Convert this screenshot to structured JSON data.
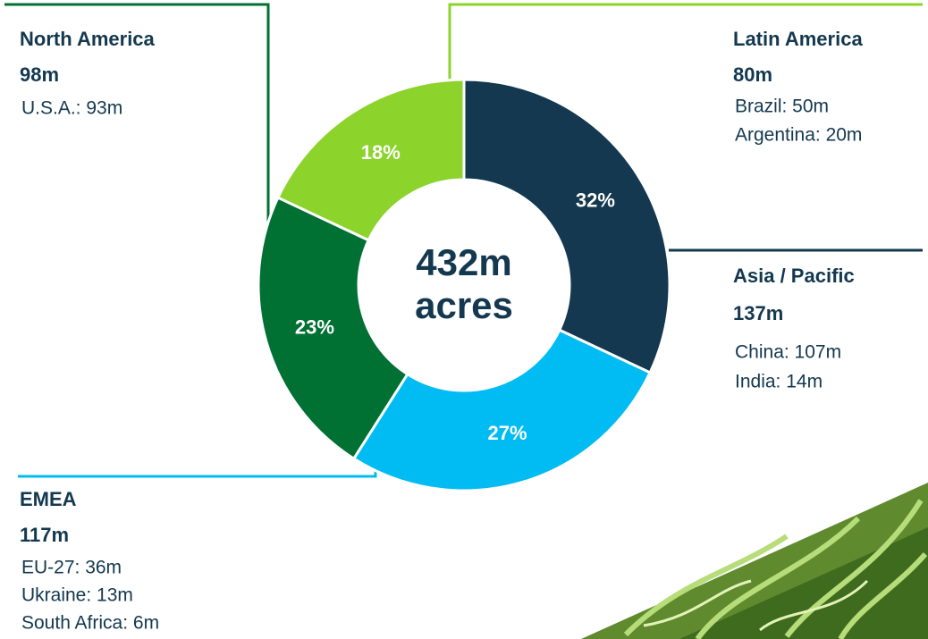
{
  "chart_data": {
    "type": "pie",
    "donut": true,
    "center_text": [
      "432m",
      "acres"
    ],
    "categories": [
      "Asia / Pacific",
      "EMEA",
      "North America",
      "Latin America"
    ],
    "values": [
      32,
      27,
      23,
      18
    ],
    "value_labels": [
      "32%",
      "27%",
      "23%",
      "18%"
    ],
    "colors": [
      "#13384f",
      "#00bcf2",
      "#007033",
      "#8cd32c"
    ],
    "regions": [
      {
        "total": "137m",
        "details": [
          "China: 107m",
          "India: 14m"
        ]
      },
      {
        "total": "117m",
        "details": [
          "EU-27: 36m",
          "Ukraine: 13m",
          "South Africa: 6m"
        ]
      },
      {
        "total": "98m",
        "details": [
          "U.S.A.: 93m"
        ]
      },
      {
        "total": "80m",
        "details": [
          "Brazil: 50m",
          "Argentina: 20m"
        ]
      }
    ]
  }
}
